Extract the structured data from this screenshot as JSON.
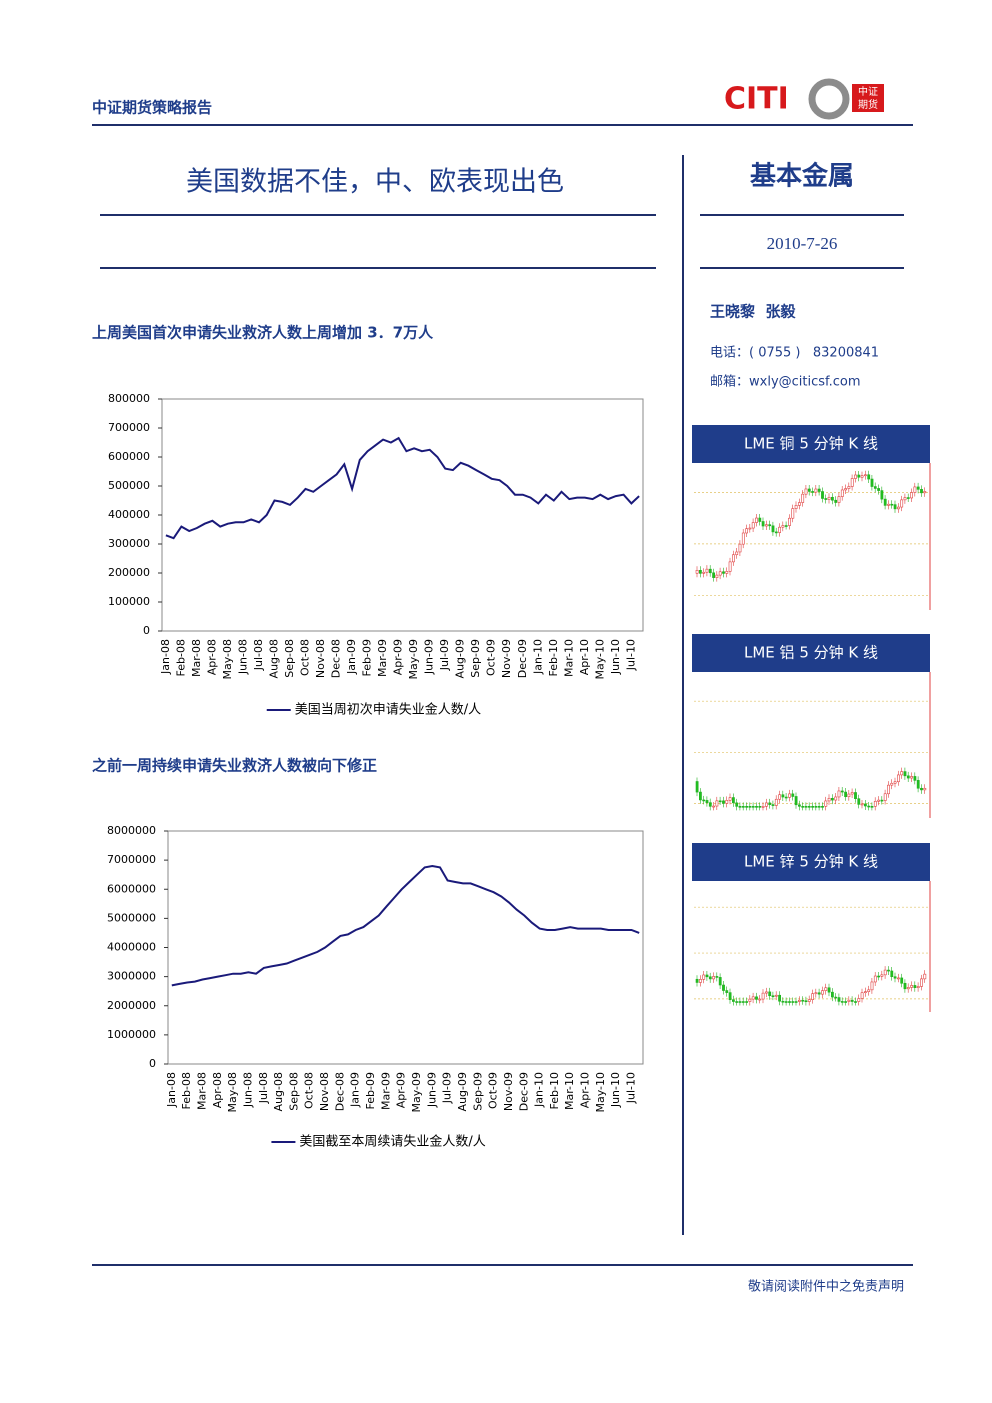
{
  "header": {
    "title": "中证期货策略报告",
    "logo_text": "CITI",
    "logo_mark_top": "中证",
    "logo_mark_bottom": "期货"
  },
  "report": {
    "title": "美国数据不佳，中、欧表现出色",
    "category": "基本金属",
    "date": "2010-7-26",
    "authors": "王晓黎  张毅",
    "phone": "电话：( 0755 )   83200841",
    "email": "邮箱：wxly@citicsf.com"
  },
  "sections": [
    {
      "heading": "上周美国首次申请失业救济人数上周增加 3．7万人"
    },
    {
      "heading": "之前一周持续申请失业救济人数被向下修正"
    }
  ],
  "panels": [
    {
      "title": "LME 铜 5 分钟 K 线"
    },
    {
      "title": "LME 铝 5 分钟 K 线"
    },
    {
      "title": "LME 锌 5 分钟 K 线"
    }
  ],
  "footer": {
    "text": "敬请阅读附件中之免责声明"
  },
  "chart_data": [
    {
      "type": "line",
      "categories": [
        "Jan-08",
        null,
        "Feb-08",
        null,
        "Mar-08",
        null,
        "Apr-08",
        null,
        "May-08",
        null,
        "Jun-08",
        null,
        "Jul-08",
        null,
        "Aug-08",
        null,
        "Sep-08",
        null,
        "Oct-08",
        null,
        "Nov-08",
        null,
        "Dec-08",
        null,
        "Jan-09",
        null,
        "Feb-09",
        null,
        "Mar-09",
        null,
        "Apr-09",
        null,
        "May-09",
        null,
        "Jun-09",
        null,
        "Jul-09",
        null,
        "Aug-09",
        null,
        "Sep-09",
        null,
        "Oct-09",
        null,
        "Nov-09",
        null,
        "Dec-09",
        null,
        "Jan-10",
        null,
        "Feb-10",
        null,
        "Mar-10",
        null,
        "Apr-10",
        null,
        "May-10",
        null,
        "Jun-10",
        null,
        "Jul-10",
        null
      ],
      "series": [
        {
          "name": "美国当周初次申请失业金人数/人",
          "color": "#1a1a7a",
          "values": [
            330000,
            320000,
            360000,
            345000,
            355000,
            370000,
            380000,
            360000,
            370000,
            375000,
            375000,
            385000,
            375000,
            400000,
            450000,
            445000,
            435000,
            460000,
            490000,
            480000,
            500000,
            520000,
            540000,
            575000,
            490000,
            590000,
            620000,
            640000,
            660000,
            650000,
            665000,
            620000,
            630000,
            620000,
            625000,
            600000,
            560000,
            555000,
            580000,
            570000,
            555000,
            540000,
            525000,
            520000,
            500000,
            470000,
            470000,
            460000,
            440000,
            470000,
            450000,
            480000,
            455000,
            460000,
            460000,
            455000,
            470000,
            455000,
            465000,
            470000,
            440000,
            465000
          ]
        }
      ],
      "ylim": [
        0,
        800000
      ],
      "yticks": [
        0,
        100000,
        200000,
        300000,
        400000,
        500000,
        600000,
        700000,
        800000
      ]
    },
    {
      "type": "line",
      "categories": [
        "Jan-08",
        null,
        "Feb-08",
        null,
        "Mar-08",
        null,
        "Apr-08",
        null,
        "May-08",
        null,
        "Jun-08",
        null,
        "Jul-08",
        null,
        "Aug-08",
        null,
        "Sep-08",
        null,
        "Oct-08",
        null,
        "Nov-08",
        null,
        "Dec-08",
        null,
        "Jan-09",
        null,
        "Feb-09",
        null,
        "Mar-09",
        null,
        "Apr-09",
        null,
        "May-09",
        null,
        "Jun-09",
        null,
        "Jul-09",
        null,
        "Aug-09",
        null,
        "Sep-09",
        null,
        "Oct-09",
        null,
        "Nov-09",
        null,
        "Dec-09",
        null,
        "Jan-10",
        null,
        "Feb-10",
        null,
        "Mar-10",
        null,
        "Apr-10",
        null,
        "May-10",
        null,
        "Jun-10",
        null,
        "Jul-10",
        null
      ],
      "series": [
        {
          "name": "美国截至本周续请失业金人数/人",
          "color": "#1a1a7a",
          "values": [
            2700000,
            2750000,
            2800000,
            2830000,
            2900000,
            2950000,
            3000000,
            3050000,
            3100000,
            3100000,
            3150000,
            3100000,
            3300000,
            3350000,
            3400000,
            3450000,
            3550000,
            3650000,
            3750000,
            3850000,
            4000000,
            4200000,
            4400000,
            4450000,
            4600000,
            4700000,
            4900000,
            5100000,
            5400000,
            5700000,
            6000000,
            6250000,
            6500000,
            6750000,
            6800000,
            6750000,
            6300000,
            6250000,
            6200000,
            6200000,
            6100000,
            6000000,
            5900000,
            5750000,
            5550000,
            5300000,
            5100000,
            4850000,
            4650000,
            4600000,
            4600000,
            4650000,
            4700000,
            4650000,
            4650000,
            4650000,
            4650000,
            4600000,
            4600000,
            4600000,
            4600000,
            4500000
          ]
        }
      ],
      "ylim": [
        0,
        8000000
      ],
      "yticks": [
        0,
        1000000,
        2000000,
        3000000,
        4000000,
        5000000,
        6000000,
        7000000,
        8000000
      ]
    }
  ]
}
